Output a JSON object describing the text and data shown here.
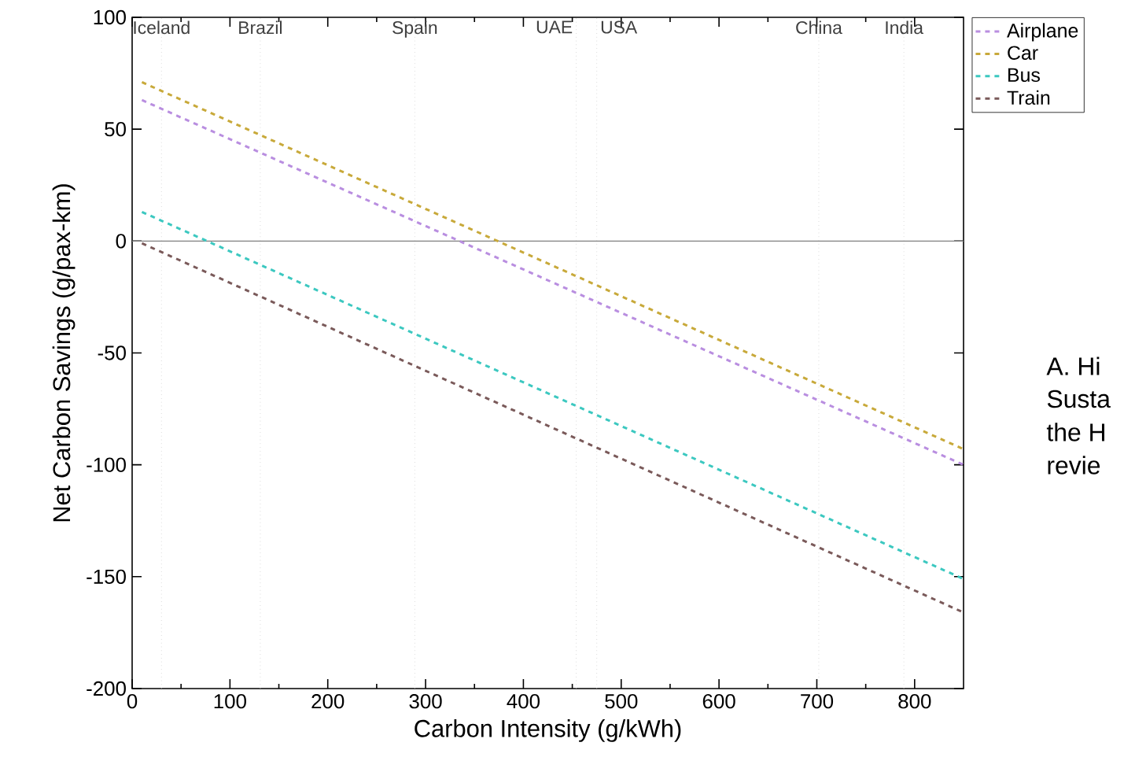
{
  "chart_data": {
    "type": "line",
    "xlabel": "Carbon Intensity (g/kWh)",
    "ylabel": "Net Carbon Savings (g/pax-km)",
    "xlim": [
      0,
      850
    ],
    "ylim": [
      -200,
      100
    ],
    "xticks": [
      0,
      100,
      200,
      300,
      400,
      500,
      600,
      700,
      800
    ],
    "yticks": [
      -200,
      -150,
      -100,
      -50,
      0,
      50,
      100
    ],
    "grid": false,
    "legend": "top right",
    "line_style": "dashed",
    "marker": "none",
    "x": [
      10,
      850
    ],
    "series": [
      {
        "name": "Airplane",
        "color": "#b98ee0",
        "values": [
          63,
          -100
        ]
      },
      {
        "name": "Car",
        "color": "#c8a93a",
        "values": [
          71,
          -93
        ]
      },
      {
        "name": "Bus",
        "color": "#3cc8c0",
        "values": [
          13,
          -151
        ]
      },
      {
        "name": "Train",
        "color": "#7a5a5a",
        "values": [
          -1,
          -166
        ]
      }
    ],
    "ref_lines": [
      {
        "axis": "y",
        "value": 0,
        "color": "#808080",
        "line_style": "solid"
      },
      {
        "axis": "x",
        "value": 30,
        "label": "Iceland",
        "color": "#c8c8c8",
        "line_style": "dotted"
      },
      {
        "axis": "x",
        "value": 131,
        "label": "Brazil",
        "color": "#c8c8c8",
        "line_style": "dotted"
      },
      {
        "axis": "x",
        "value": 289,
        "label": "Spain",
        "color": "#c8c8c8",
        "line_style": "dotted"
      },
      {
        "axis": "x",
        "value": 454,
        "label": "UAE",
        "color": "#c8c8c8",
        "line_style": "dotted"
      },
      {
        "axis": "x",
        "value": 475,
        "label": "USA",
        "color": "#c8c8c8",
        "line_style": "dotted"
      },
      {
        "axis": "x",
        "value": 702,
        "label": "China",
        "color": "#c8c8c8",
        "line_style": "dotted"
      },
      {
        "axis": "x",
        "value": 789,
        "label": "India",
        "color": "#c8c8c8",
        "line_style": "dotted"
      }
    ],
    "annotations": [
      "A. Hi",
      "Susta",
      "the H",
      "revie"
    ]
  }
}
